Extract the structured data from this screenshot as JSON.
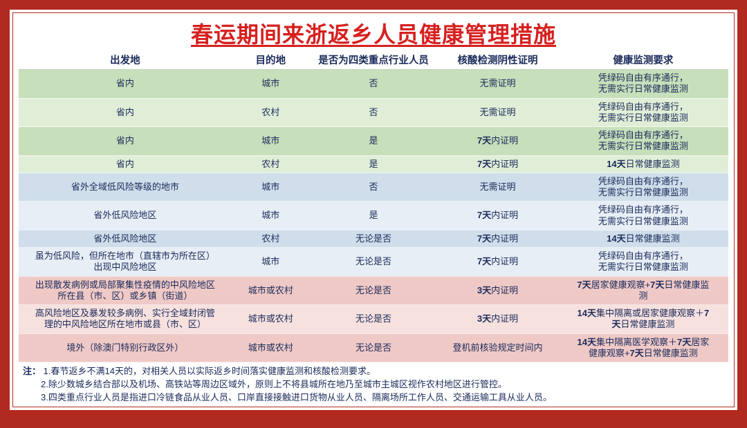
{
  "title": "春运期间来浙返乡人员健康管理措施",
  "columns": [
    "出发地",
    "目的地",
    "是否为四类重点行业人员",
    "核酸检测阴性证明",
    "健康监测要求"
  ],
  "col_widths": [
    "30%",
    "11%",
    "18%",
    "17%",
    "24%"
  ],
  "rows": [
    {
      "bg": "#c7dfba",
      "cells": [
        {
          "text": "省内"
        },
        {
          "text": "城市"
        },
        {
          "text": "否"
        },
        {
          "text": "无需证明"
        },
        {
          "html": "凭绿码自由有序通行，<br>无需实行日常健康监测"
        }
      ]
    },
    {
      "bg": "#e1eed7",
      "cells": [
        {
          "text": "省内"
        },
        {
          "text": "农村"
        },
        {
          "text": "否"
        },
        {
          "text": "无需证明"
        },
        {
          "html": "凭绿码自由有序通行，<br>无需实行日常健康监测"
        }
      ]
    },
    {
      "bg": "#c7dfba",
      "cells": [
        {
          "text": "省内"
        },
        {
          "text": "城市"
        },
        {
          "text": "是"
        },
        {
          "html": "<span class='b'>7天</span>内证明"
        },
        {
          "html": "凭绿码自由有序通行，<br>无需实行日常健康监测"
        }
      ]
    },
    {
      "bg": "#e1eed7",
      "cells": [
        {
          "text": "省内"
        },
        {
          "text": "农村"
        },
        {
          "text": "是"
        },
        {
          "html": "<span class='b'>7天</span>内证明"
        },
        {
          "html": "<span class='b'>14天</span>日常健康监测"
        }
      ]
    },
    {
      "bg": "#cfdeea",
      "cells": [
        {
          "text": "省外全域低风险等级的地市"
        },
        {
          "text": "城市"
        },
        {
          "text": "否"
        },
        {
          "text": "无需证明"
        },
        {
          "html": "凭绿码自由有序通行，<br>无需实行日常健康监测"
        }
      ]
    },
    {
      "bg": "#e7eef5",
      "cells": [
        {
          "text": "省外低风险地区"
        },
        {
          "text": "城市"
        },
        {
          "text": "是"
        },
        {
          "html": "<span class='b'>7天</span>内证明"
        },
        {
          "html": "凭绿码自由有序通行，<br>无需实行日常健康监测"
        }
      ]
    },
    {
      "bg": "#cfdeea",
      "cells": [
        {
          "text": "省外低风险地区"
        },
        {
          "text": "农村"
        },
        {
          "text": "无论是否"
        },
        {
          "html": "<span class='b'>7天</span>内证明"
        },
        {
          "html": "<span class='b'>14天</span>日常健康监测"
        }
      ]
    },
    {
      "bg": "#e7eef5",
      "cells": [
        {
          "html": "虽为低风险，但所在地市（直辖市为所在区）<br>出现中风险地区"
        },
        {
          "text": "城市"
        },
        {
          "text": "无论是否"
        },
        {
          "html": "<span class='b'>7天</span>内证明"
        },
        {
          "html": "凭绿码自由有序通行，<br>无需实行日常健康监测"
        }
      ]
    },
    {
      "bg": "#efc9c6",
      "cells": [
        {
          "html": "出现散发病例或局部聚集性疫情的中风险地区<br>所在县（市、区）或乡镇（街道）"
        },
        {
          "text": "城市或农村"
        },
        {
          "text": "无论是否"
        },
        {
          "html": "<span class='b'>3天</span>内证明"
        },
        {
          "html": "<span class='b'>7天</span>居家健康观察+<span class='b'>7天</span>日常健康监<br>测"
        }
      ]
    },
    {
      "bg": "#f6e1df",
      "cells": [
        {
          "html": "高风险地区及暴发较多病例、实行全域封闭管<br>理的中风险地区所在地市或县（市、区）"
        },
        {
          "text": "城市或农村"
        },
        {
          "text": "无论是否"
        },
        {
          "html": "<span class='b'>3天</span>内证明"
        },
        {
          "html": "<span class='b'>14天</span>集中隔离或居家健康观察＋<span class='b'>7<br>天</span>日常健康监测"
        }
      ]
    },
    {
      "bg": "#efc9c6",
      "cells": [
        {
          "text": "境外（除澳门特别行政区外）"
        },
        {
          "text": "城市或农村"
        },
        {
          "text": "无论是否"
        },
        {
          "text": "登机前核验规定时间内"
        },
        {
          "html": "<span class='b'>14天</span>集中隔离医学观察＋<span class='b'>7天</span>居家<br>健康观察+<span class='b'>7天</span>日常健康监测"
        }
      ]
    }
  ],
  "notes": {
    "label": "注：",
    "items": [
      "1.春节返乡不满14天的，对相关人员以实际返乡时间落实健康监测和核酸检测要求。",
      "2.除少数城乡结合部以及机场、高铁站等周边区域外，原则上不将县城所在地乃至城市主城区视作农村地区进行管控。",
      "3.四类重点行业人员是指进口冷链食品从业人员、口岸直接接触进口货物从业人员、隔离场所工作人员、交通运输工具从业人员。"
    ]
  },
  "colors": {
    "frame": "#b12a1f",
    "title": "#d6201f",
    "text": "#1a2a5a",
    "green_dark": "#c7dfba",
    "green_light": "#e1eed7",
    "blue_dark": "#cfdeea",
    "blue_light": "#e7eef5",
    "pink_dark": "#efc9c6",
    "pink_light": "#f6e1df"
  },
  "typography": {
    "title_fontsize": 32,
    "header_fontsize": 14.5,
    "cell_fontsize": 13,
    "notes_fontsize": 13
  }
}
